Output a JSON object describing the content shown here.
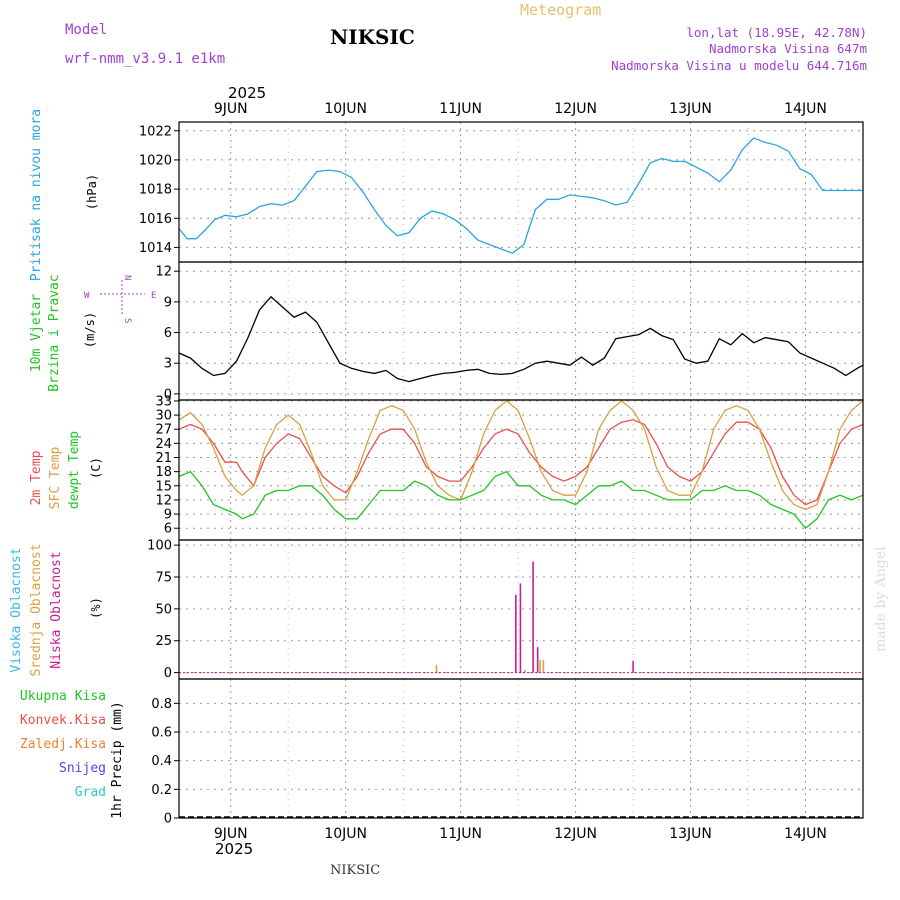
{
  "header": {
    "model_label": "Model",
    "model_name": "wrf-nmm_v3.9.1  e1km",
    "station_title": "NIKSIC",
    "meteogram_label": "Meteogram",
    "lonlat": "lon,lat (18.95E, 42.78N)",
    "elevation": "Nadmorska Visina 647m",
    "model_elevation": "Nadmorska Visina u modelu 644.716m",
    "credit": "made by Angel",
    "footer_station": "NIKSIC",
    "year": "2025"
  },
  "colors": {
    "pressure": "#29a6e0",
    "temp2m": "#e8504e",
    "sfc_temp": "#d8a040",
    "dewpt": "#22c422",
    "visoka": "#3ab8e8",
    "srednja": "#e0a040",
    "niska": "#cc1d8c",
    "model_purple": "#a040d0",
    "credit_grey": "#dcdcdc",
    "grid": "#888888"
  },
  "wind_compass": {
    "n": "N",
    "s": "S",
    "w": "W",
    "e": "E"
  },
  "chart_data": [
    {
      "id": "pressure",
      "type": "line",
      "x_unit": "day (0 = 9 JUN 2025 00:00)",
      "x_ticks": [
        "9JUN",
        "10JUN",
        "11JUN",
        "12JUN",
        "13JUN",
        "14JUN"
      ],
      "xlim": [
        -0.45,
        5.5
      ],
      "ylim": [
        1013,
        1022.6
      ],
      "yticks": [
        1014,
        1016,
        1018,
        1020,
        1022
      ],
      "ylabels": [
        "Pritisak na nivou mora",
        "(hPa)"
      ],
      "series": [
        {
          "color_key": "pressure",
          "x": [
            -0.45,
            -0.38,
            -0.3,
            -0.22,
            -0.14,
            -0.05,
            0.05,
            0.15,
            0.25,
            0.35,
            0.45,
            0.55,
            0.65,
            0.75,
            0.85,
            0.95,
            1.05,
            1.15,
            1.25,
            1.35,
            1.45,
            1.55,
            1.65,
            1.75,
            1.85,
            1.95,
            2.05,
            2.15,
            2.25,
            2.35,
            2.45,
            2.55,
            2.6,
            2.65,
            2.75,
            2.85,
            2.95,
            3.05,
            3.15,
            3.25,
            3.35,
            3.45,
            3.55,
            3.65,
            3.75,
            3.85,
            3.95,
            4.05,
            4.15,
            4.25,
            4.35,
            4.45,
            4.55,
            4.65,
            4.75,
            4.85,
            4.95,
            5.05,
            5.15,
            5.25,
            5.35,
            5.45,
            5.5
          ],
          "y": [
            1015.3,
            1014.6,
            1014.6,
            1015.2,
            1015.9,
            1016.2,
            1016.1,
            1016.3,
            1016.8,
            1017.0,
            1016.9,
            1017.2,
            1018.2,
            1019.2,
            1019.3,
            1019.2,
            1018.8,
            1017.8,
            1016.6,
            1015.5,
            1014.8,
            1015.0,
            1016.0,
            1016.5,
            1016.3,
            1015.9,
            1015.3,
            1014.5,
            1014.2,
            1013.9,
            1013.6,
            1014.2,
            1015.4,
            1016.6,
            1017.3,
            1017.3,
            1017.6,
            1017.5,
            1017.4,
            1017.2,
            1016.9,
            1017.1,
            1018.4,
            1019.8,
            1020.1,
            1019.9,
            1019.9,
            1019.5,
            1019.1,
            1018.5,
            1019.3,
            1020.7,
            1021.5,
            1021.2,
            1021.0,
            1020.6,
            1019.4,
            1019.0,
            1017.9,
            1017.9,
            1017.9,
            1017.9,
            1017.9
          ]
        }
      ]
    },
    {
      "id": "wind",
      "type": "line",
      "x_unit": "day (0 = 9 JUN 2025 00:00)",
      "xlim": [
        -0.45,
        5.5
      ],
      "ylim": [
        -0.6,
        12.9
      ],
      "yticks": [
        0,
        3,
        6,
        9,
        12
      ],
      "ylabels": [
        "10m Vjetar",
        "Brzina i Pravac",
        "(m/s)"
      ],
      "series": [
        {
          "color": "#000000",
          "x": [
            -0.45,
            -0.35,
            -0.25,
            -0.15,
            -0.05,
            0.05,
            0.15,
            0.25,
            0.35,
            0.45,
            0.55,
            0.65,
            0.75,
            0.85,
            0.95,
            1.05,
            1.15,
            1.25,
            1.35,
            1.45,
            1.55,
            1.65,
            1.75,
            1.85,
            1.95,
            2.05,
            2.15,
            2.25,
            2.35,
            2.45,
            2.55,
            2.65,
            2.75,
            2.85,
            2.95,
            3.05,
            3.15,
            3.25,
            3.35,
            3.45,
            3.55,
            3.65,
            3.75,
            3.85,
            3.95,
            4.05,
            4.15,
            4.25,
            4.35,
            4.45,
            4.55,
            4.65,
            4.75,
            4.85,
            4.95,
            5.05,
            5.15,
            5.25,
            5.35,
            5.45,
            5.5
          ],
          "y": [
            4,
            3.5,
            2.5,
            1.8,
            2,
            3.2,
            5.5,
            8.2,
            9.5,
            8.5,
            7.5,
            8,
            7,
            5,
            3,
            2.5,
            2.2,
            2,
            2.3,
            1.5,
            1.2,
            1.5,
            1.8,
            2,
            2.1,
            2.3,
            2.4,
            2,
            1.9,
            2,
            2.4,
            3,
            3.2,
            3,
            2.8,
            3.6,
            2.8,
            3.5,
            5.4,
            5.6,
            5.8,
            6.4,
            5.7,
            5.3,
            3.4,
            3,
            3.2,
            5.4,
            4.8,
            5.9,
            5,
            5.5,
            5.3,
            5.1,
            4,
            3.5,
            3,
            2.5,
            1.8,
            2.5,
            2.8
          ]
        }
      ]
    },
    {
      "id": "temperature",
      "type": "line",
      "x_unit": "day (0 = 9 JUN 2025 00:00)",
      "xlim": [
        -0.45,
        5.5
      ],
      "ylim": [
        3.5,
        33.2
      ],
      "yticks": [
        6,
        9,
        12,
        15,
        18,
        21,
        24,
        27,
        30,
        33
      ],
      "ylabels": [
        "2m Temp",
        "SFC Temp",
        "dewpt Temp",
        "(C)"
      ],
      "series": [
        {
          "color_key": "temp2m",
          "x": [
            -0.45,
            -0.35,
            -0.25,
            -0.15,
            -0.05,
            0.05,
            0.1,
            0.2,
            0.3,
            0.4,
            0.5,
            0.6,
            0.7,
            0.8,
            0.9,
            1.0,
            1.1,
            1.2,
            1.3,
            1.4,
            1.5,
            1.6,
            1.7,
            1.8,
            1.9,
            2.0,
            2.1,
            2.2,
            2.3,
            2.4,
            2.5,
            2.6,
            2.7,
            2.8,
            2.9,
            3.0,
            3.1,
            3.2,
            3.3,
            3.4,
            3.5,
            3.6,
            3.7,
            3.8,
            3.9,
            4.0,
            4.1,
            4.2,
            4.3,
            4.4,
            4.5,
            4.6,
            4.7,
            4.8,
            4.9,
            5.0,
            5.1,
            5.2,
            5.3,
            5.4,
            5.5
          ],
          "y": [
            27,
            28,
            27,
            24,
            20,
            20,
            18,
            15,
            21,
            24,
            26,
            25,
            21,
            17,
            15,
            13.5,
            17,
            22,
            26,
            27,
            27,
            24,
            19,
            17,
            16,
            16,
            19,
            23,
            26,
            27,
            26,
            22,
            19,
            17,
            16,
            17,
            19,
            23,
            27,
            28.5,
            29,
            28,
            24,
            19,
            17,
            16,
            18,
            22,
            26,
            28.5,
            28.5,
            27,
            23,
            17,
            13,
            11,
            12,
            18,
            24,
            27,
            28
          ]
        },
        {
          "color_key": "sfc_temp",
          "x": [
            -0.45,
            -0.35,
            -0.25,
            -0.15,
            -0.05,
            0.05,
            0.1,
            0.2,
            0.3,
            0.4,
            0.5,
            0.6,
            0.7,
            0.8,
            0.9,
            1.0,
            1.1,
            1.2,
            1.3,
            1.4,
            1.5,
            1.6,
            1.7,
            1.8,
            1.9,
            2.0,
            2.1,
            2.2,
            2.3,
            2.4,
            2.5,
            2.6,
            2.7,
            2.8,
            2.9,
            3.0,
            3.1,
            3.2,
            3.3,
            3.4,
            3.5,
            3.6,
            3.7,
            3.8,
            3.9,
            4.0,
            4.1,
            4.2,
            4.3,
            4.4,
            4.5,
            4.6,
            4.7,
            4.8,
            4.9,
            5.0,
            5.1,
            5.2,
            5.3,
            5.4,
            5.5
          ],
          "y": [
            29,
            30.5,
            28,
            23,
            17,
            14,
            13,
            15,
            23,
            28,
            30,
            28,
            22,
            15,
            12,
            12,
            18,
            25,
            31,
            32,
            31,
            27,
            20,
            15,
            13,
            12,
            18,
            26,
            31,
            33,
            31,
            25,
            18,
            14,
            13,
            13,
            18,
            27,
            31,
            33,
            31,
            27,
            19,
            14,
            13,
            13,
            18,
            27,
            31,
            32,
            31,
            27,
            20,
            14,
            11,
            10,
            11,
            18,
            27,
            31,
            33
          ]
        },
        {
          "color_key": "dewpt",
          "x": [
            -0.45,
            -0.35,
            -0.25,
            -0.15,
            -0.05,
            0.05,
            0.1,
            0.2,
            0.3,
            0.4,
            0.5,
            0.6,
            0.7,
            0.8,
            0.9,
            1.0,
            1.1,
            1.2,
            1.3,
            1.4,
            1.5,
            1.6,
            1.7,
            1.8,
            1.9,
            2.0,
            2.1,
            2.2,
            2.3,
            2.4,
            2.5,
            2.6,
            2.7,
            2.8,
            2.9,
            3.0,
            3.1,
            3.2,
            3.3,
            3.4,
            3.5,
            3.6,
            3.7,
            3.8,
            3.9,
            4.0,
            4.1,
            4.2,
            4.3,
            4.4,
            4.5,
            4.6,
            4.7,
            4.8,
            4.9,
            5.0,
            5.1,
            5.2,
            5.3,
            5.4,
            5.5
          ],
          "y": [
            17,
            18,
            15,
            11,
            10,
            9,
            8,
            9,
            13,
            14,
            14,
            15,
            15,
            13,
            10,
            8,
            8,
            11,
            14,
            14,
            14,
            16,
            15,
            13,
            12,
            12,
            13,
            14,
            17,
            18,
            15,
            15,
            13,
            12,
            12,
            11,
            13,
            15,
            15,
            16,
            14,
            14,
            13,
            12,
            12,
            12,
            14,
            14,
            15,
            14,
            14,
            13,
            11,
            10,
            9,
            6,
            8,
            12,
            13,
            12,
            13
          ]
        }
      ]
    },
    {
      "id": "clouds",
      "type": "bar",
      "x_unit": "day (0 = 9 JUN 2025 00:00)",
      "xlim": [
        -0.45,
        5.5
      ],
      "ylim": [
        -5,
        104
      ],
      "yticks": [
        0,
        25,
        50,
        75,
        100
      ],
      "ylabels": [
        "Visoka Oblacnost",
        "Srednja Oblacnost",
        "Niska Oblacnost",
        "(%)"
      ],
      "bars": [
        {
          "x": 1.79,
          "value": 6,
          "color_key": "srednja"
        },
        {
          "x": 2.48,
          "value": 61,
          "color_key": "niska"
        },
        {
          "x": 2.52,
          "value": 70,
          "color_key": "niska"
        },
        {
          "x": 2.56,
          "value": 2,
          "color_key": "visoka"
        },
        {
          "x": 2.63,
          "value": 87,
          "color_key": "niska"
        },
        {
          "x": 2.67,
          "value": 20,
          "color_key": "niska"
        },
        {
          "x": 2.69,
          "value": 10,
          "color_key": "srednja"
        },
        {
          "x": 2.72,
          "value": 10,
          "color_key": "srednja"
        },
        {
          "x": 3.5,
          "value": 9,
          "color_key": "niska"
        }
      ]
    },
    {
      "id": "precip",
      "type": "line",
      "x_unit": "day (0 = 9 JUN 2025 00:00)",
      "x_ticks": [
        "9JUN",
        "10JUN",
        "11JUN",
        "12JUN",
        "13JUN",
        "14JUN"
      ],
      "xlim": [
        -0.45,
        5.5
      ],
      "ylim": [
        0,
        0.97
      ],
      "yticks": [
        0,
        0.2,
        0.4,
        0.6,
        0.8
      ],
      "ytick_labels": [
        "0",
        "0.2",
        "0.4",
        "0.6",
        "0.8"
      ],
      "ylabels": [
        "1hr Precip (mm)"
      ],
      "legend": [
        {
          "label": "Ukupna Kisa",
          "color": "#22c422"
        },
        {
          "label": "Konvek.Kisa",
          "color": "#e8504e"
        },
        {
          "label": "Zaledj.Kisa",
          "color": "#f08030"
        },
        {
          "label": "Snijeg",
          "color": "#5048e0"
        },
        {
          "label": "Grad",
          "color": "#30c8c0"
        }
      ],
      "series": []
    }
  ]
}
